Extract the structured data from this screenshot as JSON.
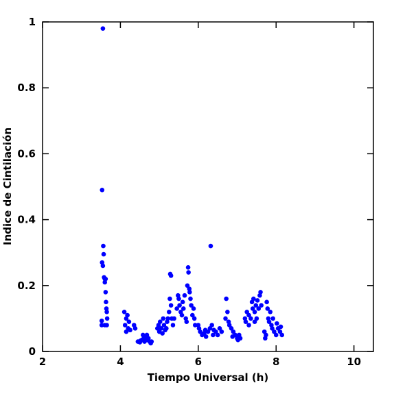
{
  "chart_data": {
    "type": "scatter",
    "xlabel": "Tiempo Universal (h)",
    "ylabel": "Indice de Cintilación",
    "xlim": [
      2,
      10.5
    ],
    "ylim": [
      0,
      1
    ],
    "xticks": [
      2,
      4,
      6,
      8,
      10
    ],
    "yticks": [
      0,
      0.2,
      0.4,
      0.6,
      0.8,
      1
    ],
    "series": [
      {
        "name": "Indice",
        "color": "#0000ff",
        "x": [
          3.52,
          3.52,
          3.53,
          3.55,
          3.53,
          3.55,
          3.56,
          3.57,
          3.58,
          3.6,
          3.6,
          3.62,
          3.6,
          3.63,
          3.64,
          3.65,
          3.66,
          3.65,
          3.62,
          4.1,
          4.12,
          4.15,
          4.18,
          4.15,
          4.2,
          4.22,
          4.25,
          4.35,
          4.38,
          4.45,
          4.5,
          4.55,
          4.6,
          4.62,
          4.65,
          4.7,
          4.72,
          4.75,
          4.78,
          4.8,
          4.58,
          4.68,
          4.52,
          4.95,
          4.98,
          5.0,
          5.02,
          5.05,
          5.08,
          5.1,
          5.12,
          5.15,
          5.18,
          5.2,
          5.22,
          5.25,
          5.27,
          5.28,
          5.3,
          5.3,
          5.32,
          5.35,
          5.38,
          5.45,
          5.48,
          5.5,
          5.52,
          5.55,
          5.58,
          5.6,
          5.62,
          5.65,
          5.68,
          5.7,
          5.72,
          5.74,
          5.75,
          5.77,
          5.78,
          5.8,
          5.82,
          5.85,
          5.88,
          5.9,
          5.92,
          6.0,
          6.02,
          6.05,
          6.1,
          6.15,
          6.2,
          6.25,
          6.3,
          6.32,
          6.35,
          6.4,
          6.45,
          6.5,
          6.55,
          6.6,
          6.18,
          6.38,
          6.7,
          6.72,
          6.75,
          6.78,
          6.8,
          6.85,
          6.9,
          6.95,
          7.0,
          7.02,
          7.05,
          7.08,
          6.88,
          7.2,
          7.22,
          7.25,
          7.3,
          7.35,
          7.38,
          7.4,
          7.42,
          7.45,
          7.48,
          7.5,
          7.52,
          7.55,
          7.58,
          7.6,
          7.62,
          7.3,
          7.45,
          7.7,
          7.72,
          7.74,
          7.76,
          7.78,
          7.8,
          7.82,
          7.85,
          7.88,
          7.9,
          7.95,
          8.0,
          8.05,
          8.1,
          8.12,
          8.15,
          8.02,
          7.92
        ],
        "values": [
          0.08,
          0.093,
          0.49,
          0.98,
          0.27,
          0.26,
          0.32,
          0.295,
          0.225,
          0.22,
          0.21,
          0.22,
          0.08,
          0.15,
          0.13,
          0.12,
          0.1,
          0.08,
          0.18,
          0.12,
          0.08,
          0.1,
          0.11,
          0.06,
          0.07,
          0.09,
          0.065,
          0.08,
          0.07,
          0.03,
          0.028,
          0.035,
          0.04,
          0.03,
          0.045,
          0.035,
          0.04,
          0.03,
          0.025,
          0.03,
          0.05,
          0.05,
          0.033,
          0.07,
          0.08,
          0.06,
          0.09,
          0.07,
          0.055,
          0.1,
          0.08,
          0.065,
          0.07,
          0.09,
          0.1,
          0.12,
          0.16,
          0.235,
          0.23,
          0.14,
          0.1,
          0.08,
          0.1,
          0.13,
          0.17,
          0.16,
          0.14,
          0.12,
          0.11,
          0.15,
          0.13,
          0.17,
          0.1,
          0.09,
          0.2,
          0.255,
          0.24,
          0.19,
          0.18,
          0.16,
          0.14,
          0.11,
          0.13,
          0.1,
          0.08,
          0.08,
          0.07,
          0.06,
          0.05,
          0.055,
          0.045,
          0.06,
          0.07,
          0.32,
          0.08,
          0.065,
          0.06,
          0.05,
          0.07,
          0.06,
          0.065,
          0.05,
          0.1,
          0.16,
          0.12,
          0.09,
          0.08,
          0.07,
          0.06,
          0.05,
          0.04,
          0.035,
          0.05,
          0.04,
          0.045,
          0.1,
          0.09,
          0.12,
          0.11,
          0.1,
          0.15,
          0.13,
          0.16,
          0.12,
          0.14,
          0.1,
          0.155,
          0.13,
          0.17,
          0.18,
          0.14,
          0.08,
          0.09,
          0.06,
          0.04,
          0.05,
          0.15,
          0.13,
          0.1,
          0.09,
          0.12,
          0.08,
          0.07,
          0.06,
          0.05,
          0.07,
          0.06,
          0.075,
          0.05,
          0.085,
          0.1
        ]
      }
    ]
  }
}
